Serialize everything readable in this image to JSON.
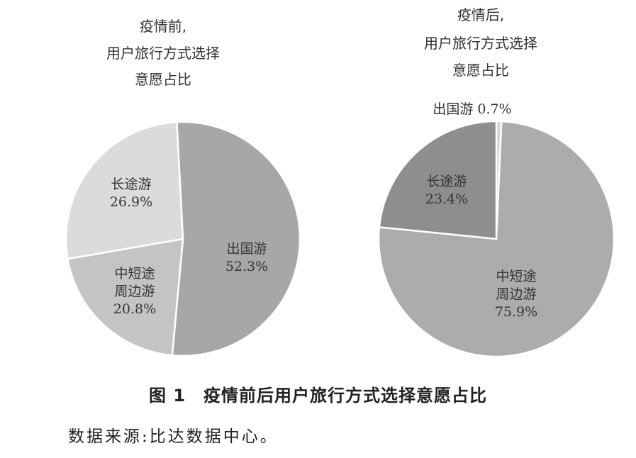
{
  "chart_data": [
    {
      "type": "pie",
      "title_lines": [
        "疫情前,",
        "用户旅行方式选择",
        "意愿占比"
      ],
      "slices": [
        {
          "label_lines": [
            "出国游"
          ],
          "value": 52.3,
          "value_label": "52.3%",
          "color": "#a7a7a7"
        },
        {
          "label_lines": [
            "中短途",
            "周边游"
          ],
          "value": 20.8,
          "value_label": "20.8%",
          "color": "#c4c4c4"
        },
        {
          "label_lines": [
            "长途游"
          ],
          "value": 26.9,
          "value_label": "26.9%",
          "color": "#dbdbdb"
        }
      ]
    },
    {
      "type": "pie",
      "title_lines": [
        "疫情后,",
        "用户旅行方式选择",
        "意愿占比"
      ],
      "slices": [
        {
          "label_lines": [
            "出国游"
          ],
          "value": 0.7,
          "value_label": "0.7%",
          "color": "#d6d6d6"
        },
        {
          "label_lines": [
            "中短途",
            "周边游"
          ],
          "value": 75.9,
          "value_label": "75.9%",
          "color": "#acacac"
        },
        {
          "label_lines": [
            "长途游"
          ],
          "value": 23.4,
          "value_label": "23.4%",
          "color": "#8e8e8e"
        }
      ]
    }
  ],
  "caption": "图 1　疫情前后用户旅行方式选择意愿占比",
  "source": "数据来源:比达数据中心。"
}
